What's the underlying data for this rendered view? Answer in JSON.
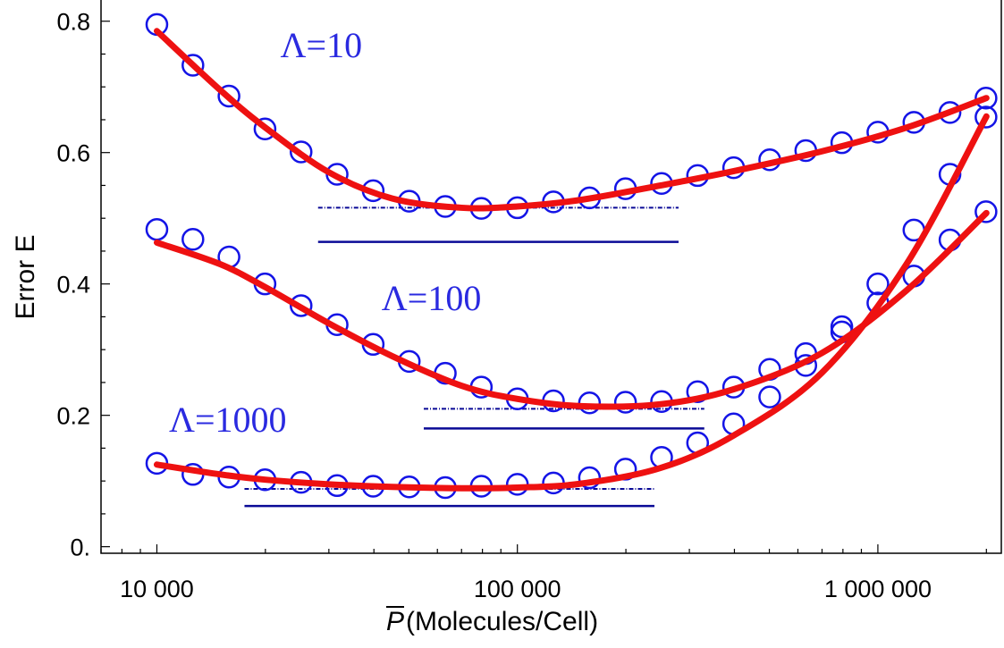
{
  "chart_data": {
    "type": "scatter",
    "xscale": "log",
    "xlim": [
      7000,
      2200000
    ],
    "ylim": [
      -0.01,
      0.835
    ],
    "xticks": [
      10000,
      100000,
      1000000
    ],
    "xtick_labels": [
      "10 000",
      "100 000",
      "1 000 000"
    ],
    "yticks": [
      0,
      0.2,
      0.4,
      0.6,
      0.8
    ],
    "ytick_labels": [
      "0.",
      "0.2",
      "0.4",
      "0.6",
      "0.8"
    ],
    "ylabel": "Error E",
    "xlabel_symbol": "P",
    "xlabel_rest": "(Molecules/Cell)",
    "grid": false,
    "colors": {
      "markers": "#1414e6",
      "fit": "#ee1111",
      "reference": "#0a0a96",
      "label": "#2a2ae0"
    },
    "series": [
      {
        "name": "Λ=10",
        "label_x": 22000,
        "label_y": 0.745,
        "x": [
          10000,
          12590,
          15850,
          19950,
          25120,
          31620,
          39810,
          50120,
          63100,
          79430,
          100000,
          125900,
          158500,
          199500,
          251200,
          316200,
          398100,
          501200,
          631000,
          794300,
          1000000,
          1259000,
          1585000,
          1995000
        ],
        "y": [
          0.795,
          0.733,
          0.686,
          0.636,
          0.601,
          0.567,
          0.542,
          0.526,
          0.518,
          0.515,
          0.516,
          0.525,
          0.531,
          0.545,
          0.553,
          0.565,
          0.577,
          0.589,
          0.603,
          0.615,
          0.631,
          0.646,
          0.661,
          0.683
        ],
        "fit_x": [
          10000,
          15000,
          20000,
          30000,
          45000,
          70000,
          100000,
          150000,
          250000,
          400000,
          700000,
          1200000,
          2000000
        ],
        "fit_y": [
          0.785,
          0.695,
          0.638,
          0.57,
          0.53,
          0.516,
          0.518,
          0.528,
          0.55,
          0.572,
          0.602,
          0.638,
          0.683
        ],
        "ref_x": [
          28000,
          280000
        ],
        "ref_dashed_y": 0.516,
        "ref_solid_y": 0.464
      },
      {
        "name": "Λ=100",
        "label_x": 42000,
        "label_y": 0.36,
        "x": [
          10000,
          12590,
          15850,
          19950,
          25120,
          31620,
          39810,
          50120,
          63100,
          79430,
          100000,
          125900,
          158500,
          199500,
          251200,
          316200,
          398100,
          501200,
          631000,
          794300,
          1000000,
          1259000,
          1585000,
          1995000
        ],
        "y": [
          0.483,
          0.468,
          0.441,
          0.4,
          0.367,
          0.338,
          0.308,
          0.282,
          0.264,
          0.243,
          0.225,
          0.222,
          0.219,
          0.22,
          0.221,
          0.236,
          0.243,
          0.27,
          0.294,
          0.327,
          0.371,
          0.412,
          0.467,
          0.51
        ],
        "fit_x": [
          10000,
          15000,
          20000,
          30000,
          45000,
          70000,
          100000,
          150000,
          250000,
          400000,
          700000,
          1200000,
          2000000
        ],
        "fit_y": [
          0.463,
          0.43,
          0.395,
          0.34,
          0.29,
          0.245,
          0.225,
          0.214,
          0.217,
          0.24,
          0.295,
          0.39,
          0.508
        ],
        "ref_x": [
          55000,
          330000
        ],
        "ref_dashed_y": 0.21,
        "ref_solid_y": 0.18
      },
      {
        "name": "Λ=1000",
        "label_x": 10800,
        "label_y": 0.175,
        "x": [
          10000,
          12590,
          15850,
          19950,
          25120,
          31620,
          39810,
          50120,
          63100,
          79430,
          100000,
          125900,
          158500,
          199500,
          251200,
          316200,
          398100,
          501200,
          631000,
          794300,
          1000000,
          1259000,
          1585000,
          1995000
        ],
        "y": [
          0.127,
          0.11,
          0.106,
          0.102,
          0.098,
          0.093,
          0.092,
          0.091,
          0.09,
          0.092,
          0.095,
          0.097,
          0.105,
          0.118,
          0.136,
          0.158,
          0.187,
          0.228,
          0.276,
          0.335,
          0.4,
          0.482,
          0.567,
          0.654
        ],
        "fit_x": [
          10000,
          15000,
          20000,
          30000,
          45000,
          70000,
          100000,
          150000,
          250000,
          400000,
          700000,
          1200000,
          2000000
        ],
        "fit_y": [
          0.125,
          0.11,
          0.102,
          0.095,
          0.091,
          0.089,
          0.09,
          0.096,
          0.12,
          0.17,
          0.265,
          0.43,
          0.655
        ],
        "ref_x": [
          17500,
          240000
        ],
        "ref_dashed_y": 0.088,
        "ref_solid_y": 0.062
      }
    ]
  }
}
